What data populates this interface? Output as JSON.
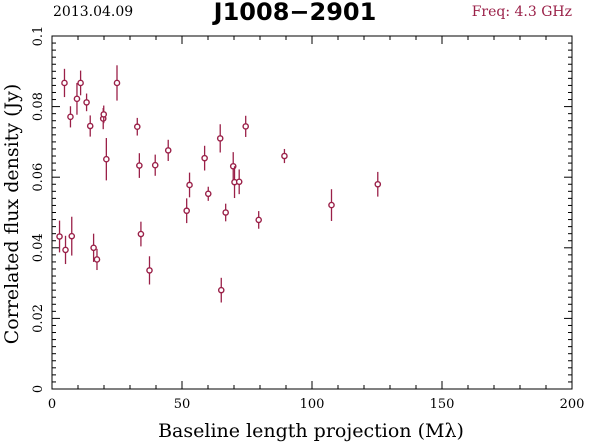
{
  "header": {
    "date": "2013.04.09",
    "source": "J1008−2901",
    "freq": "Freq: 4.3 GHz"
  },
  "colors": {
    "marker": "#9a2048",
    "axis": "#000000"
  },
  "chart_data": {
    "type": "scatter",
    "title": "J1008−2901",
    "xlabel": "Baseline length projection (Mλ)",
    "ylabel": "Correlated flux density (Jy)",
    "xlim": [
      0,
      200
    ],
    "ylim": [
      0,
      0.1
    ],
    "xticks": [
      0,
      50,
      100,
      150,
      200
    ],
    "xtick_labels": [
      "0",
      "50",
      "100",
      "150",
      "200"
    ],
    "yticks": [
      0,
      0.02,
      0.04,
      0.06,
      0.08,
      0.1
    ],
    "ytick_labels": [
      "0",
      "0.02",
      "0.04",
      "0.06",
      "0.08",
      "0.1"
    ],
    "grid": false,
    "legend": "none",
    "points": [
      {
        "x": 2.9,
        "y": 0.0432,
        "err": 0.0045
      },
      {
        "x": 4.8,
        "y": 0.0867,
        "err": 0.004
      },
      {
        "x": 5.2,
        "y": 0.0394,
        "err": 0.004
      },
      {
        "x": 7.1,
        "y": 0.0771,
        "err": 0.003
      },
      {
        "x": 7.6,
        "y": 0.0433,
        "err": 0.0055
      },
      {
        "x": 9.6,
        "y": 0.0822,
        "err": 0.0045
      },
      {
        "x": 11.0,
        "y": 0.0867,
        "err": 0.0035
      },
      {
        "x": 13.3,
        "y": 0.0812,
        "err": 0.0025
      },
      {
        "x": 14.7,
        "y": 0.0745,
        "err": 0.003
      },
      {
        "x": 16.0,
        "y": 0.04,
        "err": 0.004
      },
      {
        "x": 17.3,
        "y": 0.0367,
        "err": 0.003
      },
      {
        "x": 19.7,
        "y": 0.0766,
        "err": 0.003
      },
      {
        "x": 19.9,
        "y": 0.0778,
        "err": 0.0025
      },
      {
        "x": 20.9,
        "y": 0.0651,
        "err": 0.006
      },
      {
        "x": 25.0,
        "y": 0.0867,
        "err": 0.005
      },
      {
        "x": 32.8,
        "y": 0.0743,
        "err": 0.0025
      },
      {
        "x": 33.6,
        "y": 0.0633,
        "err": 0.0035
      },
      {
        "x": 34.2,
        "y": 0.0439,
        "err": 0.0035
      },
      {
        "x": 37.5,
        "y": 0.0336,
        "err": 0.004
      },
      {
        "x": 39.7,
        "y": 0.0634,
        "err": 0.003
      },
      {
        "x": 44.7,
        "y": 0.0676,
        "err": 0.003
      },
      {
        "x": 51.8,
        "y": 0.0505,
        "err": 0.0035
      },
      {
        "x": 52.9,
        "y": 0.0578,
        "err": 0.0035
      },
      {
        "x": 58.7,
        "y": 0.0654,
        "err": 0.0035
      },
      {
        "x": 60.1,
        "y": 0.0553,
        "err": 0.002
      },
      {
        "x": 64.7,
        "y": 0.071,
        "err": 0.004
      },
      {
        "x": 65.1,
        "y": 0.028,
        "err": 0.0035
      },
      {
        "x": 66.8,
        "y": 0.05,
        "err": 0.0025
      },
      {
        "x": 69.7,
        "y": 0.0631,
        "err": 0.004
      },
      {
        "x": 70.2,
        "y": 0.0586,
        "err": 0.0045
      },
      {
        "x": 72.0,
        "y": 0.0587,
        "err": 0.0035
      },
      {
        "x": 74.5,
        "y": 0.0744,
        "err": 0.003
      },
      {
        "x": 79.5,
        "y": 0.0479,
        "err": 0.0025
      },
      {
        "x": 89.4,
        "y": 0.066,
        "err": 0.002
      },
      {
        "x": 107.5,
        "y": 0.0521,
        "err": 0.0045
      },
      {
        "x": 125.3,
        "y": 0.058,
        "err": 0.0035
      }
    ]
  }
}
